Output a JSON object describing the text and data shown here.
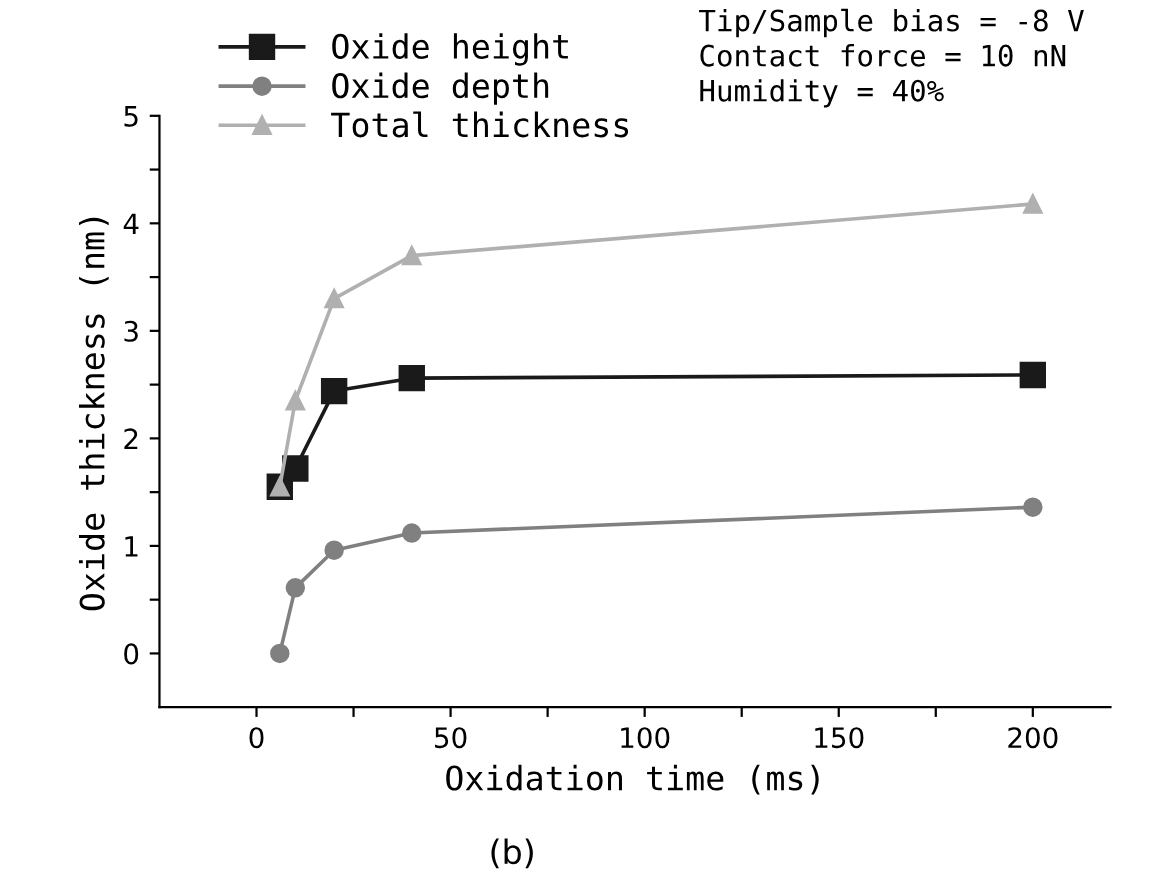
{
  "chart_data": {
    "type": "line",
    "xlabel": "Oxidation time (ms)",
    "ylabel": "Oxide thickness (nm)",
    "x": [
      6,
      10,
      20,
      40,
      200
    ],
    "series": [
      {
        "name": "Oxide height",
        "color": "#1a1a1a",
        "marker": "square",
        "values": [
          1.55,
          1.72,
          2.44,
          2.56,
          2.59
        ]
      },
      {
        "name": "Oxide depth",
        "color": "#808080",
        "marker": "circle",
        "values": [
          0,
          0.61,
          0.96,
          1.12,
          1.36
        ]
      },
      {
        "name": "Total thickness",
        "color": "#b0b0b0",
        "marker": "triangle",
        "values": [
          1.55,
          2.35,
          3.3,
          3.7,
          4.18
        ]
      }
    ],
    "xlim": [
      -25,
      220
    ],
    "ylim": [
      -0.5,
      5
    ],
    "xticks": [
      0,
      {
        "value": 25,
        "label": null
      },
      50,
      {
        "value": 75,
        "label": null
      },
      100,
      {
        "value": 125,
        "label": null
      },
      150,
      {
        "value": 175,
        "label": null
      },
      200
    ],
    "yticks": [
      0,
      {
        "value": 0.5,
        "label": null
      },
      1,
      {
        "value": 1.5,
        "label": null
      },
      2,
      {
        "value": 2.5,
        "label": null
      },
      3,
      {
        "value": 3.5,
        "label": null
      },
      4,
      {
        "value": 4.5,
        "label": null
      },
      5
    ],
    "legend": "top left",
    "grid": false,
    "line_style": "solid",
    "annotations": [
      "Tip/Sample bias = -8 V\nContact force = 10 nN\nHumidity = 40%",
      "(b)"
    ]
  }
}
